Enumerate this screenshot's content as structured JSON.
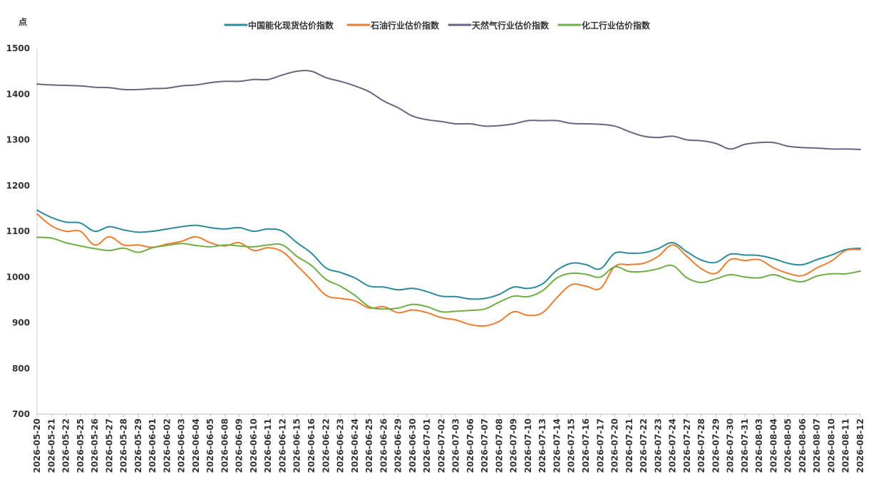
{
  "chart_data": {
    "type": "line",
    "y_unit": "点",
    "ylim": [
      700,
      1500
    ],
    "y_ticks": [
      700,
      800,
      900,
      1000,
      1100,
      1200,
      1300,
      1400,
      1500
    ],
    "grid": false,
    "legend_position": "top-center",
    "x": [
      "2026-05-20",
      "2026-05-21",
      "2026-05-22",
      "2026-05-25",
      "2026-05-26",
      "2026-05-27",
      "2026-05-28",
      "2026-05-29",
      "2026-06-01",
      "2026-06-02",
      "2026-06-03",
      "2026-06-04",
      "2026-06-05",
      "2026-06-08",
      "2026-06-09",
      "2026-06-10",
      "2026-06-11",
      "2026-06-12",
      "2026-06-15",
      "2026-06-16",
      "2026-06-22",
      "2026-06-23",
      "2026-06-24",
      "2026-06-25",
      "2026-06-26",
      "2026-06-29",
      "2026-06-30",
      "2026-07-01",
      "2026-07-02",
      "2026-07-03",
      "2026-07-06",
      "2026-07-07",
      "2026-07-08",
      "2026-07-09",
      "2026-07-10",
      "2026-07-13",
      "2026-07-14",
      "2026-07-15",
      "2026-07-16",
      "2026-07-17",
      "2026-07-20",
      "2026-07-21",
      "2026-07-22",
      "2026-07-23",
      "2026-07-24",
      "2026-07-27",
      "2026-07-28",
      "2026-07-29",
      "2026-07-30",
      "2026-07-31",
      "2026-08-03",
      "2026-08-04",
      "2026-08-05",
      "2026-08-06",
      "2026-08-07",
      "2026-08-10",
      "2026-08-11",
      "2026-08-12"
    ],
    "series": [
      {
        "name": "中国能化现货估价指数",
        "color": "#2b8b9b",
        "values": [
          1146,
          1130,
          1120,
          1118,
          1100,
          1110,
          1103,
          1098,
          1100,
          1105,
          1110,
          1113,
          1108,
          1105,
          1108,
          1100,
          1105,
          1100,
          1075,
          1052,
          1020,
          1010,
          998,
          980,
          978,
          972,
          975,
          968,
          958,
          957,
          952,
          953,
          962,
          978,
          975,
          985,
          1015,
          1030,
          1027,
          1018,
          1052,
          1052,
          1053,
          1062,
          1075,
          1055,
          1037,
          1032,
          1050,
          1048,
          1047,
          1040,
          1030,
          1027,
          1038,
          1048,
          1060,
          1063
        ]
      },
      {
        "name": "石油行业估价指数",
        "color": "#ed7d31",
        "values": [
          1138,
          1112,
          1100,
          1100,
          1070,
          1088,
          1070,
          1070,
          1065,
          1072,
          1078,
          1088,
          1075,
          1068,
          1075,
          1058,
          1064,
          1055,
          1025,
          993,
          960,
          953,
          948,
          932,
          935,
          922,
          928,
          922,
          911,
          906,
          896,
          893,
          903,
          924,
          916,
          922,
          955,
          983,
          980,
          975,
          1023,
          1027,
          1030,
          1045,
          1070,
          1045,
          1018,
          1008,
          1038,
          1036,
          1038,
          1020,
          1008,
          1003,
          1020,
          1035,
          1058,
          1060
        ]
      },
      {
        "name": "天然气行业估价指数",
        "color": "#6a6483",
        "values": [
          1422,
          1420,
          1419,
          1418,
          1415,
          1414,
          1410,
          1410,
          1412,
          1413,
          1418,
          1420,
          1425,
          1428,
          1428,
          1432,
          1432,
          1442,
          1450,
          1450,
          1436,
          1428,
          1418,
          1405,
          1385,
          1370,
          1352,
          1344,
          1340,
          1335,
          1335,
          1330,
          1331,
          1335,
          1342,
          1342,
          1342,
          1336,
          1335,
          1334,
          1330,
          1318,
          1308,
          1305,
          1308,
          1300,
          1298,
          1292,
          1280,
          1290,
          1294,
          1294,
          1286,
          1283,
          1282,
          1280,
          1280,
          1279
        ]
      },
      {
        "name": "化工行业估价指数",
        "color": "#70ad47",
        "values": [
          1087,
          1085,
          1075,
          1068,
          1062,
          1058,
          1063,
          1054,
          1064,
          1069,
          1073,
          1069,
          1066,
          1070,
          1068,
          1066,
          1070,
          1070,
          1045,
          1025,
          995,
          980,
          960,
          935,
          930,
          932,
          940,
          935,
          924,
          925,
          927,
          930,
          945,
          958,
          957,
          970,
          998,
          1008,
          1006,
          1000,
          1022,
          1012,
          1012,
          1018,
          1025,
          998,
          988,
          996,
          1005,
          1000,
          998,
          1005,
          995,
          990,
          1002,
          1007,
          1007,
          1013
        ]
      }
    ]
  }
}
